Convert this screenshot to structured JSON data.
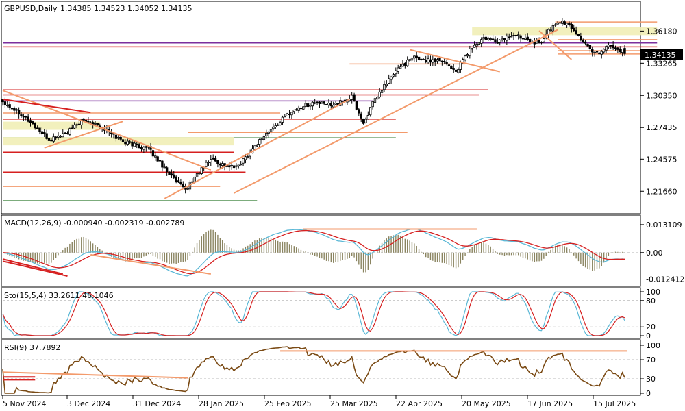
{
  "header": {
    "symbol_timeframe": "GBPUSD,Daily",
    "ohlc": "1.34385 1.34523 1.34052 1.34135"
  },
  "price_badge": "1.34135",
  "x_ticks": [
    "5 Nov 2024",
    "3 Dec 2024",
    "31 Dec 2024",
    "28 Jan 2025",
    "25 Feb 2025",
    "25 Mar 2025",
    "22 Apr 2025",
    "20 May 2025",
    "17 Jun 2025",
    "15 Jul 2025"
  ],
  "panels": {
    "macd": {
      "label": "MACD(12,26,9) -0.000940 -0.002319 -0.002789",
      "ticks": [
        "0.013109",
        "0.00",
        "-0.012412"
      ]
    },
    "sto": {
      "label": "Sto(15,5,4) 33.2611 46.1046",
      "ticks": [
        "100",
        "80",
        "20",
        "0"
      ]
    },
    "rsi": {
      "label": "RSI(9) 37.7892",
      "ticks": [
        "100",
        "70",
        "30",
        "0"
      ]
    }
  },
  "colors": {
    "up": "#000000",
    "down": "#000000",
    "accent": "#f39a6b",
    "red": "#d62020",
    "purple": "#7b2f9e",
    "green": "#2f7a2f",
    "zone": "#f1eeb6",
    "macd_line": "#5bb8d6",
    "macd_signal": "#d62020",
    "hist": "#8a8460",
    "rsi": "#7a4a14"
  },
  "chart_data": [
    {
      "type": "candlestick",
      "symbol": "GBPUSD",
      "timeframe": "Daily",
      "ylim": [
        1.2,
        1.385
      ],
      "y_ticks": [
        1.3618,
        1.33265,
        1.3035,
        1.27435,
        1.24575,
        1.2166
      ],
      "last_price": 1.34135,
      "close_path_knots": [
        [
          0,
          1.298
        ],
        [
          8,
          1.287
        ],
        [
          14,
          1.275
        ],
        [
          20,
          1.263
        ],
        [
          28,
          1.27
        ],
        [
          34,
          1.28
        ],
        [
          40,
          1.279
        ],
        [
          46,
          1.27
        ],
        [
          52,
          1.262
        ],
        [
          58,
          1.258
        ],
        [
          63,
          1.255
        ],
        [
          70,
          1.238
        ],
        [
          75,
          1.225
        ],
        [
          79,
          1.218
        ],
        [
          84,
          1.232
        ],
        [
          90,
          1.246
        ],
        [
          96,
          1.24
        ],
        [
          101,
          1.238
        ],
        [
          106,
          1.25
        ],
        [
          112,
          1.265
        ],
        [
          118,
          1.276
        ],
        [
          124,
          1.288
        ],
        [
          130,
          1.294
        ],
        [
          135,
          1.297
        ],
        [
          140,
          1.295
        ],
        [
          146,
          1.297
        ],
        [
          151,
          1.302
        ],
        [
          156,
          1.278
        ],
        [
          160,
          1.296
        ],
        [
          166,
          1.315
        ],
        [
          172,
          1.33
        ],
        [
          178,
          1.338
        ],
        [
          184,
          1.335
        ],
        [
          190,
          1.336
        ],
        [
          196,
          1.325
        ],
        [
          202,
          1.345
        ],
        [
          208,
          1.355
        ],
        [
          214,
          1.352
        ],
        [
          220,
          1.358
        ],
        [
          226,
          1.356
        ],
        [
          232,
          1.35
        ],
        [
          236,
          1.362
        ],
        [
          241,
          1.371
        ],
        [
          246,
          1.365
        ],
        [
          250,
          1.355
        ],
        [
          254,
          1.345
        ],
        [
          258,
          1.342
        ],
        [
          262,
          1.35
        ],
        [
          266,
          1.345
        ]
      ],
      "horizontal_levels": [
        {
          "price": 1.37,
          "color": "accent",
          "x_start": 239,
          "x_end": 283
        },
        {
          "price": 1.3618,
          "color": "zone",
          "x_start": 203,
          "x_end": 283
        },
        {
          "price": 1.354,
          "color": "accent",
          "x_start": 240,
          "x_end": 283
        },
        {
          "price": 1.351,
          "color": "purple",
          "x_start": 0,
          "x_end": 283
        },
        {
          "price": 1.3475,
          "color": "red",
          "x_start": 0,
          "x_end": 283
        },
        {
          "price": 1.344,
          "color": "accent",
          "x_start": 240,
          "x_end": 283
        },
        {
          "price": 1.341,
          "color": "accent",
          "x_start": 240,
          "x_end": 283
        },
        {
          "price": 1.332,
          "color": "accent",
          "x_start": 150,
          "x_end": 200
        },
        {
          "price": 1.3085,
          "color": "red",
          "x_start": 0,
          "x_end": 210
        },
        {
          "price": 1.304,
          "color": "red",
          "x_start": 0,
          "x_end": 206
        },
        {
          "price": 1.2985,
          "color": "purple",
          "x_start": 0,
          "x_end": 160
        },
        {
          "price": 1.2875,
          "color": "accent",
          "x_start": 0,
          "x_end": 120
        },
        {
          "price": 1.282,
          "color": "red",
          "x_start": 0,
          "x_end": 170
        },
        {
          "price": 1.276,
          "color": "zone",
          "x_start": 0,
          "x_end": 42
        },
        {
          "price": 1.27,
          "color": "accent",
          "x_start": 80,
          "x_end": 175
        },
        {
          "price": 1.265,
          "color": "green",
          "x_start": 0,
          "x_end": 170
        },
        {
          "price": 1.262,
          "color": "zone",
          "x_start": 0,
          "x_end": 100
        },
        {
          "price": 1.252,
          "color": "red",
          "x_start": 0,
          "x_end": 100
        },
        {
          "price": 1.234,
          "color": "red",
          "x_start": 0,
          "x_end": 105
        },
        {
          "price": 1.221,
          "color": "accent",
          "x_start": 0,
          "x_end": 94
        },
        {
          "price": 1.208,
          "color": "green",
          "x_start": 0,
          "x_end": 110
        }
      ],
      "trend_lines": [
        {
          "from": [
            0,
            1.308
          ],
          "to": [
            90,
            1.236
          ],
          "color": "accent"
        },
        {
          "from": [
            0,
            1.3
          ],
          "to": [
            38,
            1.288
          ],
          "color": "red"
        },
        {
          "from": [
            18,
            1.256
          ],
          "to": [
            52,
            1.28
          ],
          "color": "accent"
        },
        {
          "from": [
            70,
            1.21
          ],
          "to": [
            150,
            1.3
          ],
          "color": "accent"
        },
        {
          "from": [
            100,
            1.215
          ],
          "to": [
            240,
            1.363
          ],
          "color": "accent"
        },
        {
          "from": [
            176,
            1.345
          ],
          "to": [
            215,
            1.325
          ],
          "color": "accent"
        },
        {
          "from": [
            232,
            1.362
          ],
          "to": [
            246,
            1.336
          ],
          "color": "accent"
        }
      ]
    },
    {
      "type": "line",
      "name": "MACD(12,26,9)",
      "values_shown": [
        -0.00094,
        -0.002319,
        -0.002789
      ],
      "ylim": [
        -0.0145,
        0.015
      ],
      "y_ticks": [
        0.013109,
        0.0,
        -0.012412
      ],
      "series": [
        {
          "values": "derived"
        },
        {
          "values": "derived"
        }
      ],
      "histogram": true,
      "trend_lines": [
        {
          "from": [
            0,
            -0.004
          ],
          "to": [
            28,
            -0.011
          ],
          "color": "red"
        },
        {
          "from": [
            0,
            -0.003
          ],
          "to": [
            26,
            -0.01
          ],
          "color": "red"
        },
        {
          "from": [
            38,
            -0.001
          ],
          "to": [
            90,
            -0.01
          ],
          "color": "accent"
        },
        {
          "from": [
            130,
            0.011
          ],
          "to": [
            205,
            0.011
          ],
          "color": "accent"
        }
      ]
    },
    {
      "type": "line",
      "name": "Sto(15,5,4)",
      "values_shown": [
        33.2611,
        46.1046
      ],
      "ylim": [
        0,
        100
      ],
      "y_ticks": [
        100,
        80,
        20,
        0
      ],
      "series": [
        {
          "values": "derived"
        },
        {
          "values": "derived"
        }
      ]
    },
    {
      "type": "line",
      "name": "RSI(9)",
      "values_shown": [
        37.7892
      ],
      "ylim": [
        0,
        100
      ],
      "y_ticks": [
        100,
        70,
        30,
        0
      ],
      "series": [
        {
          "values": "derived"
        }
      ],
      "trend_lines": [
        {
          "from": [
            0,
            44
          ],
          "to": [
            80,
            32
          ],
          "color": "accent"
        },
        {
          "from": [
            0,
            34
          ],
          "to": [
            14,
            34
          ],
          "color": "red"
        },
        {
          "from": [
            0,
            28
          ],
          "to": [
            14,
            28
          ],
          "color": "red"
        },
        {
          "from": [
            120,
            88
          ],
          "to": [
            270,
            88
          ],
          "color": "accent"
        }
      ]
    }
  ]
}
